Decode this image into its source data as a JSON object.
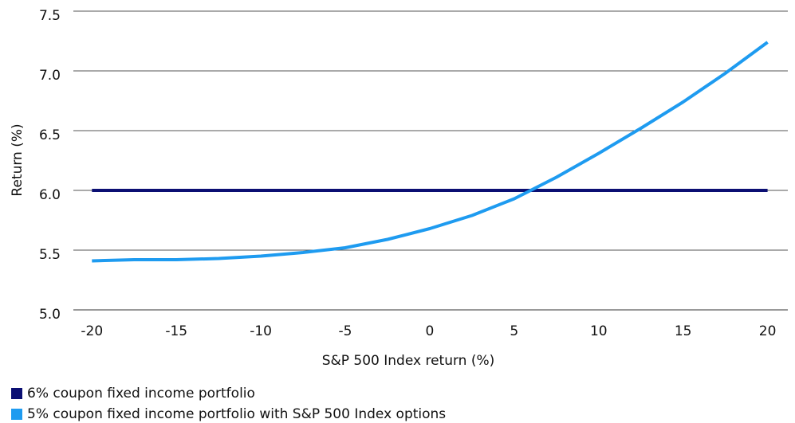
{
  "chart_data": {
    "type": "line",
    "x_label": "S&P 500 Index return (%)",
    "y_label": "Return (%)",
    "x": [
      -20,
      -17.5,
      -15,
      -12.5,
      -10,
      -7.5,
      -5,
      -2.5,
      0,
      2.5,
      5,
      7.5,
      10,
      12.5,
      15,
      17.5,
      20
    ],
    "series": [
      {
        "name": "6% coupon fixed income portfolio",
        "color": "#0b0f73",
        "values": [
          6,
          6,
          6,
          6,
          6,
          6,
          6,
          6,
          6,
          6,
          6,
          6,
          6,
          6,
          6,
          6,
          6
        ]
      },
      {
        "name": "5% coupon fixed income portfolio with S&P 500 Index options",
        "color": "#1e9bf0",
        "values": [
          5.41,
          5.42,
          5.42,
          5.43,
          5.45,
          5.48,
          5.52,
          5.59,
          5.68,
          5.79,
          5.93,
          6.11,
          6.31,
          6.52,
          6.74,
          6.98,
          7.24
        ]
      }
    ],
    "xlim": [
      -21.1,
      21.2
    ],
    "xticks": [
      -20,
      -15,
      -10,
      -5,
      0,
      5,
      10,
      15,
      20
    ],
    "ylim": [
      5,
      7.5
    ],
    "yticks": [
      {
        "value": 5,
        "label": "5.0"
      },
      5.5,
      {
        "value": 6,
        "label": "6.0"
      },
      6.5,
      {
        "value": 7,
        "label": "7.0"
      },
      7.5
    ],
    "grid": true,
    "legend": "bottom-left"
  }
}
